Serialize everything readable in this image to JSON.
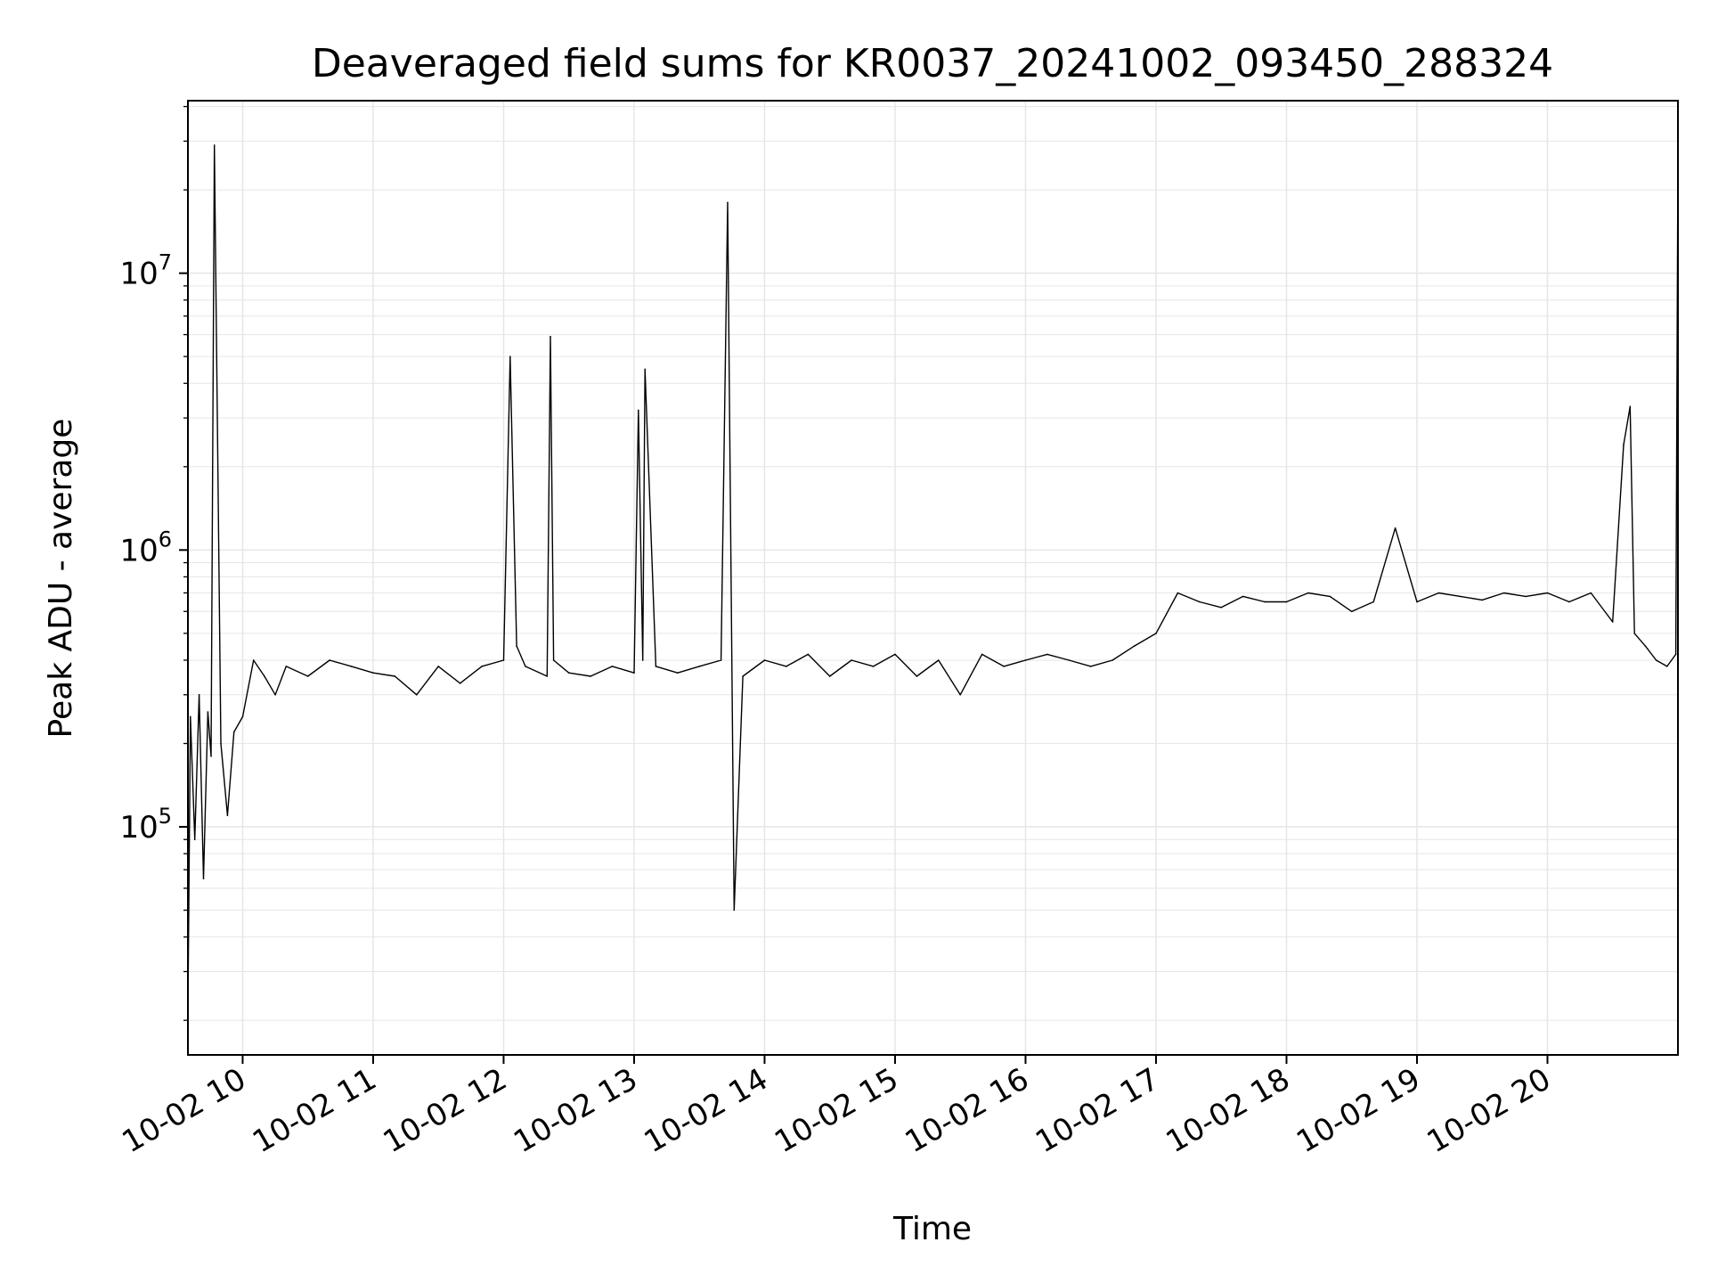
{
  "chart_data": {
    "type": "line",
    "title": "Deaveraged field sums for KR0037_20241002_093450_288324",
    "xlabel": "Time",
    "ylabel": "Peak ADU - average",
    "y_scale": "log",
    "ylim": [
      15000,
      42000000
    ],
    "xlim": [
      "2024-10-02 09:34:50",
      "2024-10-02 21:00:00"
    ],
    "grid": true,
    "legend": "none",
    "line_color": "#000000",
    "grid_color": "#e6e6e6",
    "x_ticks": [
      {
        "t": "2024-10-02 10:00",
        "label": "10-02 10"
      },
      {
        "t": "2024-10-02 11:00",
        "label": "10-02 11"
      },
      {
        "t": "2024-10-02 12:00",
        "label": "10-02 12"
      },
      {
        "t": "2024-10-02 13:00",
        "label": "10-02 13"
      },
      {
        "t": "2024-10-02 14:00",
        "label": "10-02 14"
      },
      {
        "t": "2024-10-02 15:00",
        "label": "10-02 15"
      },
      {
        "t": "2024-10-02 16:00",
        "label": "10-02 16"
      },
      {
        "t": "2024-10-02 17:00",
        "label": "10-02 17"
      },
      {
        "t": "2024-10-02 18:00",
        "label": "10-02 18"
      },
      {
        "t": "2024-10-02 19:00",
        "label": "10-02 19"
      },
      {
        "t": "2024-10-02 20:00",
        "label": "10-02 20"
      }
    ],
    "y_ticks": [
      {
        "value": 100000,
        "base": "10",
        "exp": "5"
      },
      {
        "value": 1000000,
        "base": "10",
        "exp": "6"
      },
      {
        "value": 10000000,
        "base": "10",
        "exp": "7"
      }
    ],
    "series": [
      {
        "x": [
          "2024-10-02 09:34:50",
          "2024-10-02 09:36:00",
          "2024-10-02 09:38:00",
          "2024-10-02 09:40:00",
          "2024-10-02 09:42:00",
          "2024-10-02 09:44:00",
          "2024-10-02 09:45:30",
          "2024-10-02 09:47:00",
          "2024-10-02 09:50:00",
          "2024-10-02 09:53:00",
          "2024-10-02 09:56:00",
          "2024-10-02 10:00:00",
          "2024-10-02 10:05:00",
          "2024-10-02 10:10:00",
          "2024-10-02 10:15:00",
          "2024-10-02 10:20:00",
          "2024-10-02 10:30:00",
          "2024-10-02 10:40:00",
          "2024-10-02 10:50:00",
          "2024-10-02 11:00:00",
          "2024-10-02 11:10:00",
          "2024-10-02 11:20:00",
          "2024-10-02 11:30:00",
          "2024-10-02 11:40:00",
          "2024-10-02 11:50:00",
          "2024-10-02 12:00:00",
          "2024-10-02 12:03:00",
          "2024-10-02 12:06:00",
          "2024-10-02 12:10:00",
          "2024-10-02 12:20:00",
          "2024-10-02 12:21:30",
          "2024-10-02 12:23:00",
          "2024-10-02 12:30:00",
          "2024-10-02 12:40:00",
          "2024-10-02 12:50:00",
          "2024-10-02 13:00:00",
          "2024-10-02 13:02:00",
          "2024-10-02 13:04:00",
          "2024-10-02 13:05:00",
          "2024-10-02 13:10:00",
          "2024-10-02 13:20:00",
          "2024-10-02 13:30:00",
          "2024-10-02 13:40:00",
          "2024-10-02 13:43:00",
          "2024-10-02 13:46:00",
          "2024-10-02 13:50:00",
          "2024-10-02 14:00:00",
          "2024-10-02 14:10:00",
          "2024-10-02 14:20:00",
          "2024-10-02 14:30:00",
          "2024-10-02 14:40:00",
          "2024-10-02 14:50:00",
          "2024-10-02 15:00:00",
          "2024-10-02 15:10:00",
          "2024-10-02 15:20:00",
          "2024-10-02 15:30:00",
          "2024-10-02 15:40:00",
          "2024-10-02 15:50:00",
          "2024-10-02 16:00:00",
          "2024-10-02 16:10:00",
          "2024-10-02 16:20:00",
          "2024-10-02 16:30:00",
          "2024-10-02 16:40:00",
          "2024-10-02 16:50:00",
          "2024-10-02 17:00:00",
          "2024-10-02 17:10:00",
          "2024-10-02 17:20:00",
          "2024-10-02 17:30:00",
          "2024-10-02 17:40:00",
          "2024-10-02 17:50:00",
          "2024-10-02 18:00:00",
          "2024-10-02 18:10:00",
          "2024-10-02 18:20:00",
          "2024-10-02 18:30:00",
          "2024-10-02 18:40:00",
          "2024-10-02 18:50:00",
          "2024-10-02 19:00:00",
          "2024-10-02 19:10:00",
          "2024-10-02 19:20:00",
          "2024-10-02 19:30:00",
          "2024-10-02 19:40:00",
          "2024-10-02 19:50:00",
          "2024-10-02 20:00:00",
          "2024-10-02 20:10:00",
          "2024-10-02 20:20:00",
          "2024-10-02 20:30:00",
          "2024-10-02 20:35:00",
          "2024-10-02 20:38:00",
          "2024-10-02 20:40:00",
          "2024-10-02 20:45:00",
          "2024-10-02 20:50:00",
          "2024-10-02 20:55:00",
          "2024-10-02 20:59:00",
          "2024-10-02 21:00:00"
        ],
        "y": [
          22000,
          250000,
          90000,
          300000,
          65000,
          260000,
          180000,
          29000000,
          200000,
          110000,
          220000,
          250000,
          400000,
          350000,
          300000,
          380000,
          350000,
          400000,
          380000,
          360000,
          350000,
          300000,
          380000,
          330000,
          380000,
          400000,
          5000000,
          450000,
          380000,
          350000,
          5900000,
          400000,
          360000,
          350000,
          380000,
          360000,
          3200000,
          400000,
          4500000,
          380000,
          360000,
          380000,
          400000,
          18000000,
          50000,
          350000,
          400000,
          380000,
          420000,
          350000,
          400000,
          380000,
          420000,
          350000,
          400000,
          300000,
          420000,
          380000,
          400000,
          420000,
          400000,
          380000,
          400000,
          450000,
          500000,
          700000,
          650000,
          620000,
          680000,
          650000,
          650000,
          700000,
          680000,
          600000,
          650000,
          1200000,
          650000,
          700000,
          680000,
          660000,
          700000,
          680000,
          700000,
          650000,
          700000,
          550000,
          2400000,
          3300000,
          500000,
          450000,
          400000,
          380000,
          420000,
          27000000
        ]
      }
    ]
  }
}
